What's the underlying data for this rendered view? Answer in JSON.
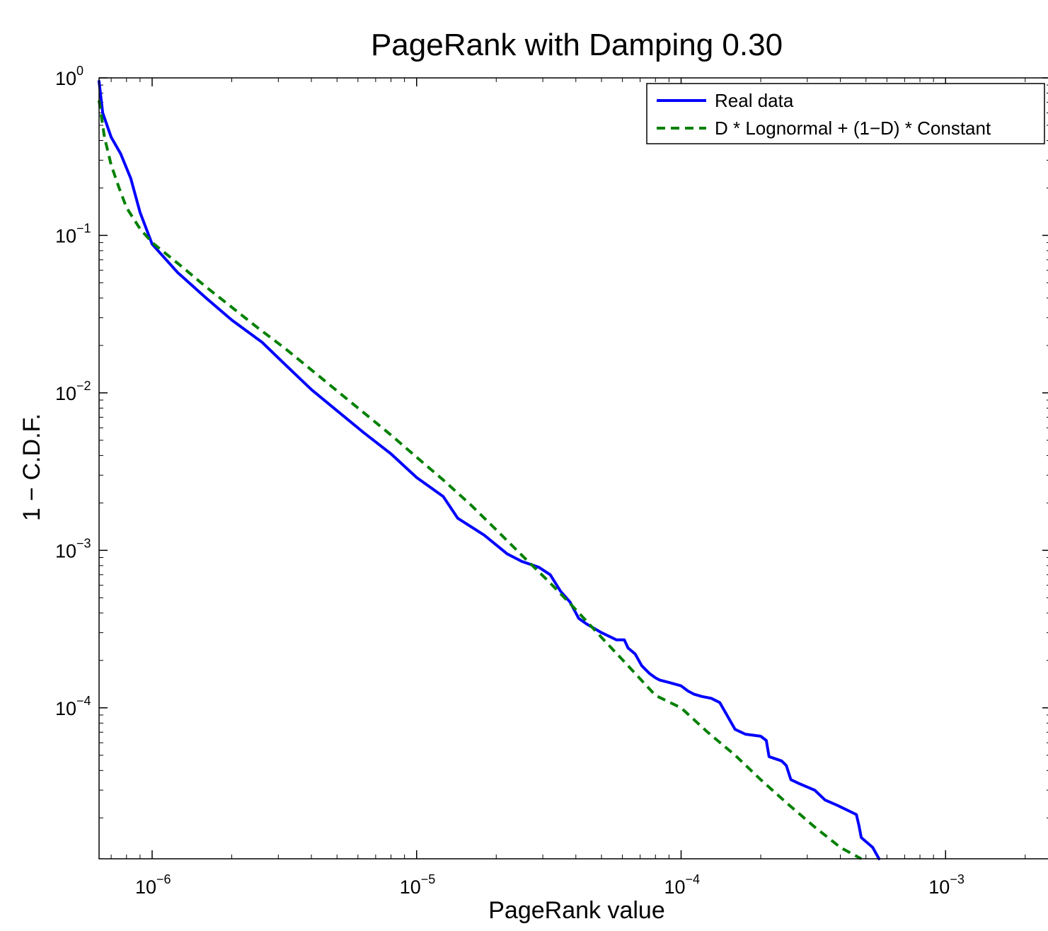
{
  "chart_data": {
    "type": "line",
    "title": "PageRank with Damping 0.30",
    "xlabel": "PageRank value",
    "ylabel": "1 − C.D.F.",
    "x_scale": "log",
    "y_scale": "log",
    "xlim": [
      6.3e-07,
      0.0025
    ],
    "ylim": [
      1.1e-05,
      1.0
    ],
    "grid": false,
    "legend_position": "top-right",
    "x_ticks": [
      {
        "base": "10",
        "exp": "−6",
        "value": 1e-06
      },
      {
        "base": "10",
        "exp": "−5",
        "value": 1e-05
      },
      {
        "base": "10",
        "exp": "−4",
        "value": 0.0001
      },
      {
        "base": "10",
        "exp": "−3",
        "value": 0.001
      }
    ],
    "y_ticks": [
      {
        "base": "10",
        "exp": "0",
        "value": 1
      },
      {
        "base": "10",
        "exp": "−1",
        "value": 0.1
      },
      {
        "base": "10",
        "exp": "−2",
        "value": 0.01
      },
      {
        "base": "10",
        "exp": "−3",
        "value": 0.001
      },
      {
        "base": "10",
        "exp": "−4",
        "value": 0.0001
      }
    ],
    "series": [
      {
        "name": "Real data",
        "color": "#0000ff",
        "style": "solid",
        "x": [
          6.3e-07,
          6.5e-07,
          7e-07,
          7.6e-07,
          8.3e-07,
          9e-07,
          1e-06,
          1.25e-06,
          1.6e-06,
          2e-06,
          2.6e-06,
          3.2e-06,
          4e-06,
          5e-06,
          6.3e-06,
          8e-06,
          1e-05,
          1.26e-05,
          1.43e-05,
          1.8e-05,
          2.2e-05,
          2.5e-05,
          2.9e-05,
          3.2e-05,
          3.5e-05,
          3.8e-05,
          4e-05,
          4.1e-05,
          4.4e-05,
          5e-05,
          5.7e-05,
          6.1e-05,
          6.3e-05,
          6.3e-05,
          6.7e-05,
          7.1e-05,
          7.6e-05,
          8e-05,
          8.3e-05,
          9e-05,
          0.0001,
          0.000106,
          0.000112,
          0.00012,
          0.00013,
          0.00014,
          0.00016,
          0.00016,
          0.000175,
          0.0002,
          0.00021,
          0.000215,
          0.00024,
          0.00025,
          0.00026,
          0.00028,
          0.00032,
          0.00035,
          0.00039,
          0.00046,
          0.00047,
          0.00048,
          0.00053,
          0.00056
        ],
        "y": [
          0.95,
          0.6,
          0.42,
          0.33,
          0.23,
          0.14,
          0.088,
          0.058,
          0.04,
          0.029,
          0.021,
          0.015,
          0.0105,
          0.0077,
          0.0056,
          0.0041,
          0.0029,
          0.0022,
          0.0016,
          0.00125,
          0.00095,
          0.00085,
          0.00078,
          0.0007,
          0.00055,
          0.00047,
          0.0004,
          0.00037,
          0.00034,
          0.0003,
          0.00027,
          0.00027,
          0.00024,
          0.00024,
          0.00022,
          0.000185,
          0.000165,
          0.000155,
          0.00015,
          0.000145,
          0.000138,
          0.000128,
          0.000122,
          0.000118,
          0.000115,
          0.000108,
          7.3e-05,
          7.3e-05,
          6.8e-05,
          6.6e-05,
          6.2e-05,
          4.9e-05,
          4.6e-05,
          4.3e-05,
          3.5e-05,
          3.3e-05,
          3e-05,
          2.6e-05,
          2.4e-05,
          2.1e-05,
          1.8e-05,
          1.5e-05,
          1.3e-05,
          1.1e-05
        ]
      },
      {
        "name": "D * Lognormal + (1−D) * Constant",
        "color": "#008000",
        "style": "dashed",
        "x": [
          6.3e-07,
          6.6e-07,
          7e-07,
          7.5e-07,
          8e-07,
          9e-07,
          1e-06,
          1.3e-06,
          1.6e-06,
          2e-06,
          2.5e-06,
          3.2e-06,
          4e-06,
          5e-06,
          6.3e-06,
          8e-06,
          1e-05,
          1.26e-05,
          1.6e-05,
          2e-05,
          2.5e-05,
          3.2e-05,
          4e-05,
          5e-05,
          6.3e-05,
          8e-05,
          0.0001,
          0.000126,
          0.00016,
          0.0002,
          0.00025,
          0.00032,
          0.0004,
          0.00048
        ],
        "y": [
          0.72,
          0.42,
          0.28,
          0.2,
          0.15,
          0.11,
          0.09,
          0.063,
          0.047,
          0.035,
          0.026,
          0.019,
          0.014,
          0.0103,
          0.0075,
          0.0054,
          0.0039,
          0.0028,
          0.00195,
          0.00135,
          0.00093,
          0.00062,
          0.00042,
          0.00028,
          0.000185,
          0.00012,
          0.0001,
          7e-05,
          5e-05,
          3.5e-05,
          2.5e-05,
          1.75e-05,
          1.3e-05,
          1.1e-05
        ]
      }
    ]
  }
}
